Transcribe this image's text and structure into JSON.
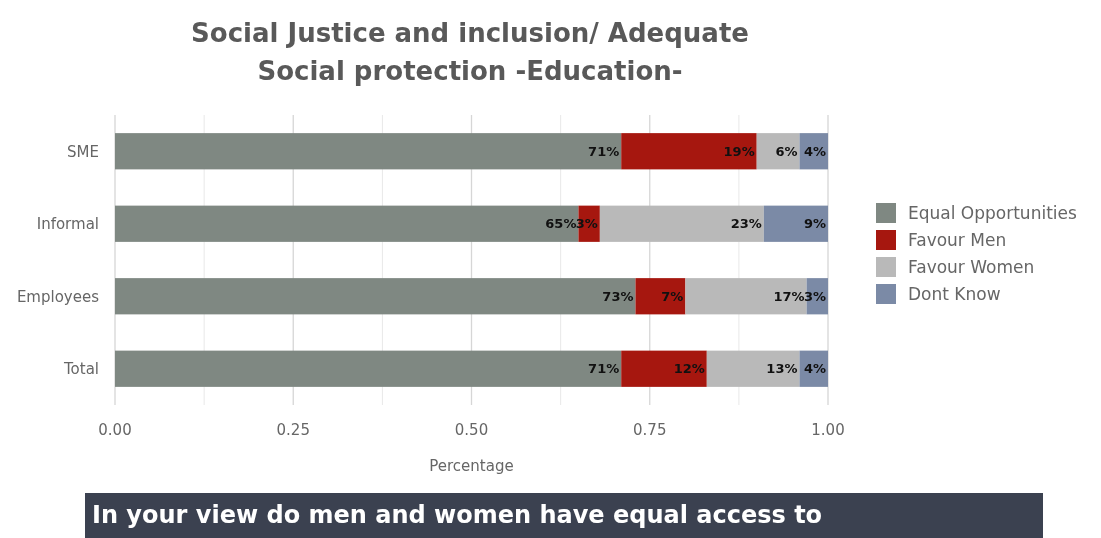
{
  "chart_data": {
    "type": "bar",
    "orientation": "horizontal",
    "stacked": true,
    "title": "Social Justice and inclusion/ Adequate Social protection -Education-",
    "xlabel": "Percentage",
    "categories": [
      "SME",
      "Informal",
      "Employees",
      "Total"
    ],
    "series": [
      {
        "name": "Equal Opportunities",
        "color": "#7f8882",
        "values": [
          0.71,
          0.65,
          0.73,
          0.71
        ],
        "value_labels": [
          "71%",
          "65%",
          "73%",
          "71%"
        ]
      },
      {
        "name": "Favour Men",
        "color": "#a6170f",
        "values": [
          0.19,
          0.03,
          0.07,
          0.12
        ],
        "value_labels": [
          "19%",
          "3%",
          "7%",
          "12%"
        ]
      },
      {
        "name": "Favour Women",
        "color": "#b9b9b9",
        "values": [
          0.06,
          0.23,
          0.17,
          0.13
        ],
        "value_labels": [
          "6%",
          "23%",
          "17%",
          "13%"
        ]
      },
      {
        "name": "Dont Know",
        "color": "#7b8aa6",
        "values": [
          0.04,
          0.09,
          0.03,
          0.04
        ],
        "value_labels": [
          "4%",
          "9%",
          "3%",
          "4%"
        ]
      }
    ],
    "xlim": [
      0,
      1
    ],
    "xticks": [
      {
        "value": 0,
        "label": "0.00"
      },
      {
        "value": 0.25,
        "label": "0.25"
      },
      {
        "value": 0.5,
        "label": "0.50"
      },
      {
        "value": 0.75,
        "label": "0.75"
      },
      {
        "value": 1,
        "label": "1.00"
      }
    ],
    "grid": "x",
    "legend": "right",
    "annotations": [
      "In your view do men and women have equal access to"
    ]
  }
}
